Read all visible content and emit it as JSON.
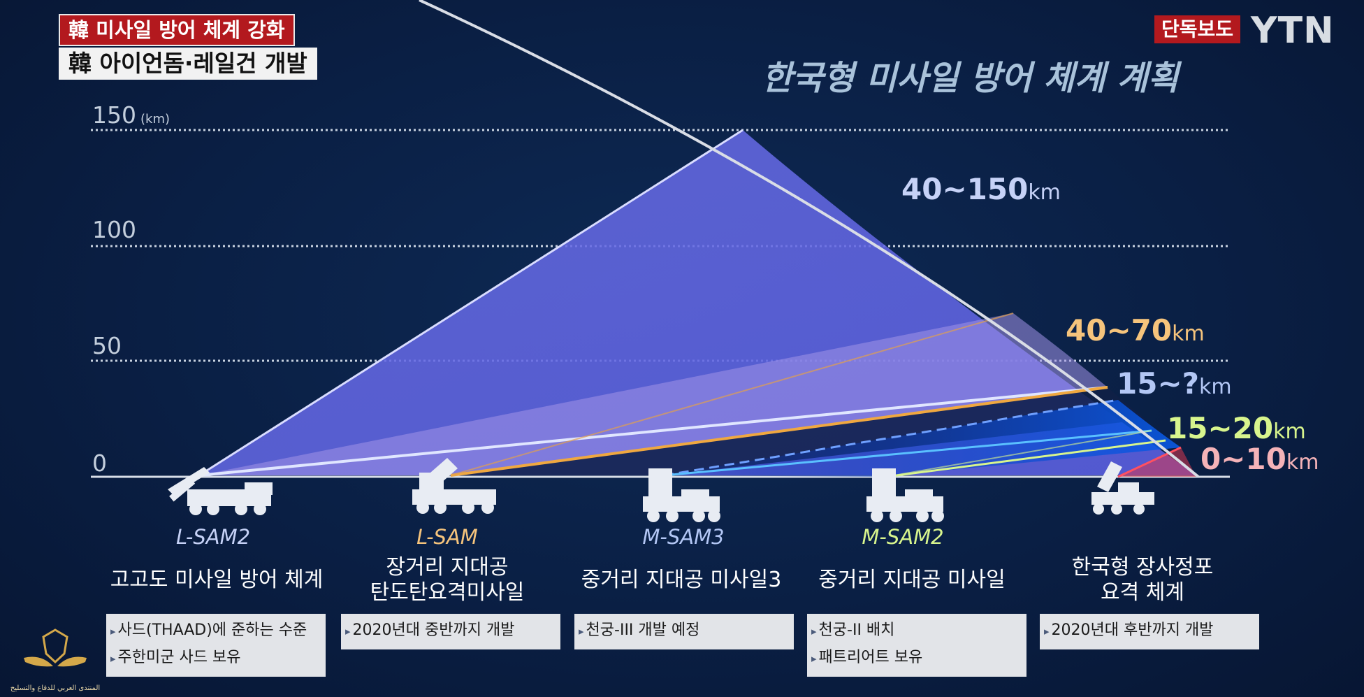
{
  "caption": {
    "tag": "韓 미사일 방어 체계 강화",
    "headline": "韓 아이언돔·레일건 개발"
  },
  "broadcaster": {
    "badge": "단독보도",
    "logo": "YTN"
  },
  "chart_data": {
    "type": "diagram",
    "title": "한국형 미사일 방어 체계 계획",
    "y_ticks": [
      "150",
      "100",
      "50",
      "0"
    ],
    "y_unit": "(km)",
    "systems": [
      {
        "code": "L-SAM2",
        "name": "고고도 미사일 방어 체계",
        "notes": [
          "사드(THAAD)에 준하는 수준",
          "주한미군 사드 보유"
        ],
        "color": "#c6d2f7"
      },
      {
        "code": "L-SAM",
        "name": "장거리 지대공\n탄도탄요격미사일",
        "notes": [
          "2020년대 중반까지 개발"
        ],
        "color": "#f6c47c"
      },
      {
        "code": "M-SAM3",
        "name": "중거리 지대공 미사일3",
        "notes": [
          "천궁-III 개발 예정"
        ],
        "color": "#b3c7f5"
      },
      {
        "code": "M-SAM2",
        "name": "중거리 지대공 미사일",
        "notes": [
          "천궁-II 배치",
          "패트리어트 보유"
        ],
        "color": "#d8f58d"
      },
      {
        "code": "",
        "name": "한국형 장사정포\n요격 체계",
        "notes": [
          "2020년대 후반까지 개발"
        ],
        "color": "#ffffff"
      }
    ],
    "ranges": [
      {
        "value": "40~150",
        "unit": "km",
        "color": "#c6d2f7"
      },
      {
        "value": "40~70",
        "unit": "km",
        "color": "#f6c47c"
      },
      {
        "value": "15~?",
        "unit": "km",
        "color": "#b3c7f5"
      },
      {
        "value": "15~20",
        "unit": "km",
        "color": "#d8f58d"
      },
      {
        "value": "0~10",
        "unit": "km",
        "color": "#f5b3b8"
      }
    ]
  },
  "watermark": {
    "text": "المنتدى العربي للدفاع والتسليح"
  }
}
